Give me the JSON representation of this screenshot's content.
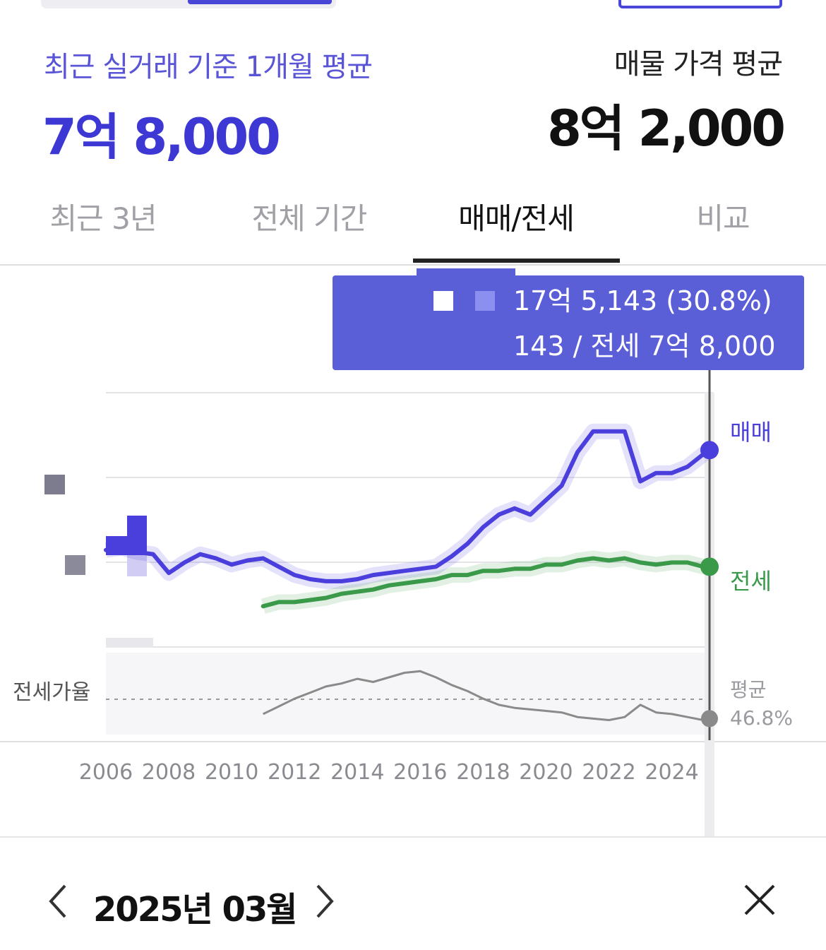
{
  "summary": {
    "recent_label": "최근 실거래 기준 1개월 평균",
    "recent_value": "7억 8,000",
    "listing_label": "매물 가격 평균",
    "listing_value": "8억 2,000"
  },
  "tabs": [
    {
      "label": "최근 3년",
      "active": false
    },
    {
      "label": "전체 기간",
      "active": false
    },
    {
      "label": "매매/전세",
      "active": true
    },
    {
      "label": "비교",
      "active": false
    }
  ],
  "tooltip": {
    "line1": "17억 5,143 (30.8%)",
    "line2": "143 / 전세 7억 8,000"
  },
  "date_nav": {
    "label": "2025년 03월"
  },
  "colors": {
    "sale": "#4a3fdc",
    "jeonse": "#3a9a4a",
    "ratio": "#8a8a8a",
    "tooltip_bg": "#5a5fd8"
  },
  "chart_data": {
    "type": "line",
    "x_ticks": [
      "2006",
      "2008",
      "2010",
      "2012",
      "2014",
      "2016",
      "2018",
      "2020",
      "2022",
      "2024"
    ],
    "series": [
      {
        "name": "매매",
        "color": "#4a3fdc",
        "x": [
          2006.0,
          2006.5,
          2007.0,
          2007.5,
          2008.0,
          2008.5,
          2009.0,
          2009.5,
          2010.0,
          2010.5,
          2011.0,
          2011.5,
          2012.0,
          2012.5,
          2013.0,
          2013.5,
          2014.0,
          2014.5,
          2015.0,
          2015.5,
          2016.0,
          2016.5,
          2017.0,
          2017.5,
          2018.0,
          2018.5,
          2019.0,
          2019.5,
          2020.0,
          2020.5,
          2021.0,
          2021.5,
          2022.0,
          2022.5,
          2023.0,
          2023.5,
          2024.0,
          2024.5,
          2025.0,
          2025.2
        ],
        "y": [
          6.3,
          6.4,
          6.2,
          6.1,
          5.2,
          5.7,
          6.1,
          5.9,
          5.6,
          5.8,
          5.9,
          5.5,
          5.1,
          4.9,
          4.8,
          4.8,
          4.9,
          5.1,
          5.2,
          5.3,
          5.4,
          5.5,
          6.0,
          6.6,
          7.4,
          8.0,
          8.3,
          8.0,
          8.7,
          9.4,
          11.0,
          12.0,
          12.0,
          12.0,
          9.6,
          10.0,
          10.0,
          10.3,
          10.9,
          11.1
        ]
      },
      {
        "name": "전세",
        "color": "#3a9a4a",
        "x": [
          2011.0,
          2011.5,
          2012.0,
          2012.5,
          2013.0,
          2013.5,
          2014.0,
          2014.5,
          2015.0,
          2015.5,
          2016.0,
          2016.5,
          2017.0,
          2017.5,
          2018.0,
          2018.5,
          2019.0,
          2019.5,
          2020.0,
          2020.5,
          2021.0,
          2021.5,
          2022.0,
          2022.5,
          2023.0,
          2023.5,
          2024.0,
          2024.5,
          2025.0,
          2025.2
        ],
        "y": [
          3.6,
          3.8,
          3.8,
          3.9,
          4.0,
          4.2,
          4.3,
          4.4,
          4.6,
          4.7,
          4.8,
          4.9,
          5.1,
          5.1,
          5.3,
          5.3,
          5.4,
          5.4,
          5.6,
          5.6,
          5.8,
          5.9,
          5.8,
          5.9,
          5.7,
          5.6,
          5.7,
          5.7,
          5.5,
          5.5
        ]
      }
    ],
    "ratio_series": {
      "name": "전세가율",
      "x": [
        2011.0,
        2011.5,
        2012.0,
        2012.5,
        2013.0,
        2013.5,
        2014.0,
        2014.5,
        2015.0,
        2015.5,
        2016.0,
        2016.5,
        2017.0,
        2017.5,
        2018.0,
        2018.5,
        2019.0,
        2019.5,
        2020.0,
        2020.5,
        2021.0,
        2021.5,
        2022.0,
        2022.5,
        2023.0,
        2023.5,
        2024.0,
        2024.5,
        2025.0,
        2025.2
      ],
      "y": [
        42,
        47,
        52,
        56,
        60,
        62,
        65,
        63,
        66,
        69,
        70,
        66,
        61,
        57,
        52,
        48,
        46,
        45,
        44,
        43,
        40,
        39,
        38,
        40,
        48,
        43,
        42,
        40,
        38,
        39
      ],
      "average_label": "평균",
      "average_value": "46.8%"
    },
    "ratio_label": "전세가율",
    "end_labels": {
      "sale": "매매",
      "jeonse": "전세"
    }
  }
}
